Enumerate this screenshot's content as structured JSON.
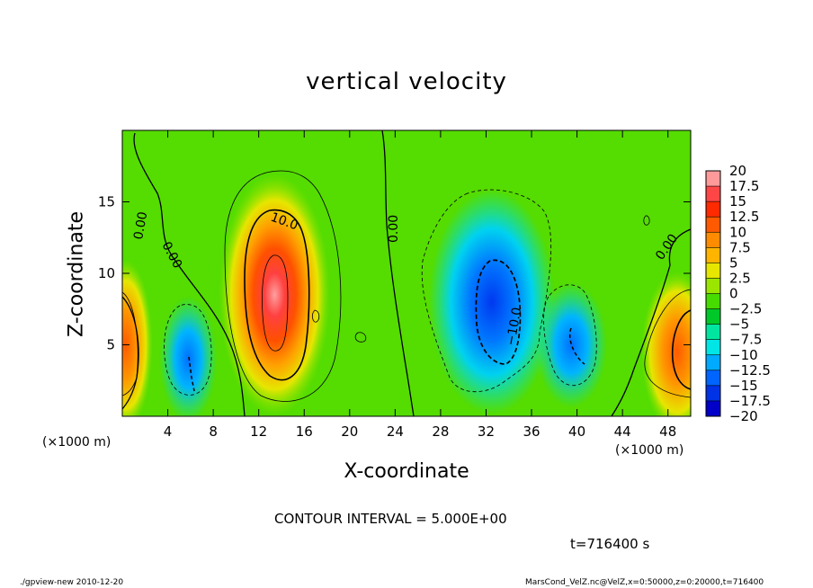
{
  "chart_data": {
    "type": "heatmap",
    "title": "vertical velocity",
    "xlabel": "X-coordinate",
    "ylabel": "Z-coordinate",
    "x_unit_label": "(×1000 m)",
    "xlim": [
      0,
      50
    ],
    "ylim": [
      0,
      20
    ],
    "x_ticks": [
      4,
      8,
      12,
      16,
      20,
      24,
      28,
      32,
      36,
      40,
      44,
      48
    ],
    "y_ticks": [
      5,
      10,
      15
    ],
    "colorbar": {
      "labels": [
        "20",
        "17.5",
        "15",
        "12.5",
        "10",
        "7.5",
        "5",
        "2.5",
        "0",
        "−2.5",
        "−5",
        "−7.5",
        "−10",
        "−12.5",
        "−15",
        "−17.5",
        "−20"
      ],
      "colors": [
        "#ff9a9a",
        "#ff4646",
        "#ff2a00",
        "#ff5a00",
        "#ff8c00",
        "#ffb400",
        "#e6e600",
        "#9be600",
        "#46dc00",
        "#00c828",
        "#00e6a0",
        "#00e6e6",
        "#00aaff",
        "#0064ff",
        "#0032e6",
        "#0000c8",
        "#6400b4"
      ]
    },
    "contour_interval_text": "CONTOUR INTERVAL = 5.000E+00",
    "contour_labels": [
      "0.00",
      "0.00",
      "10.0",
      "0.00",
      "−10.0",
      "0.00"
    ],
    "features": [
      {
        "x": 13.4,
        "z": 8.5,
        "value": 20,
        "sign": "up"
      },
      {
        "x": 0.3,
        "z": 5.0,
        "value": 12,
        "sign": "up"
      },
      {
        "x": 48.8,
        "z": 4.5,
        "value": 12,
        "sign": "up"
      },
      {
        "x": 5.8,
        "z": 4.0,
        "value": -9,
        "sign": "down"
      },
      {
        "x": 32.5,
        "z": 8.0,
        "value": -14,
        "sign": "down"
      },
      {
        "x": 39.5,
        "z": 5.0,
        "value": -10,
        "sign": "down"
      }
    ]
  },
  "time_label": "t=716400 s",
  "footer_left": "./gpview-new  2010-12-20",
  "footer_right": "MarsCond_VelZ.nc@VelZ,x=0:50000,z=0:20000,t=716400"
}
